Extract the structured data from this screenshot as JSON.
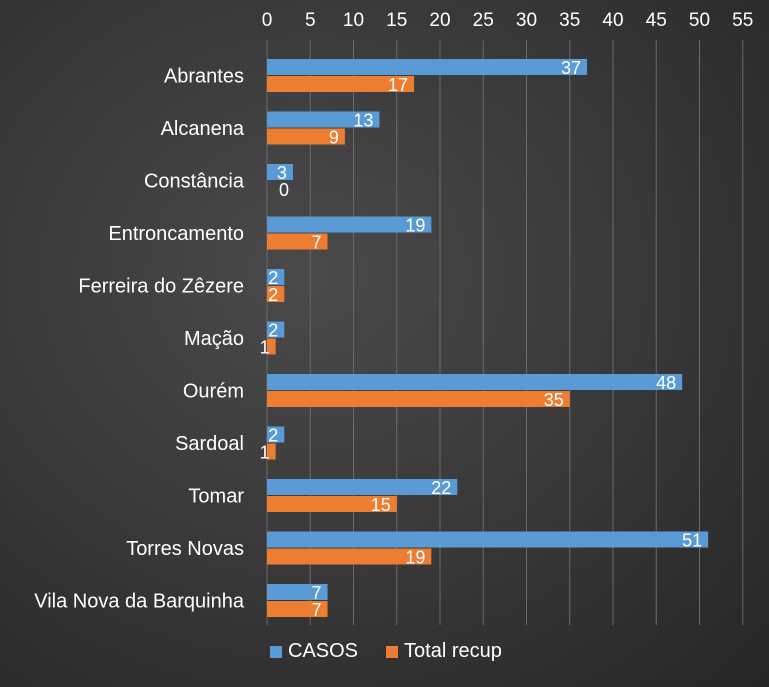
{
  "chart_data": {
    "type": "bar",
    "orientation": "horizontal",
    "categories": [
      "Abrantes",
      "Alcanena",
      "Constância",
      "Entroncamento",
      "Ferreira do Zêzere",
      "Mação",
      "Ourém",
      "Sardoal",
      "Tomar",
      "Torres Novas",
      "Vila Nova da Barquinha"
    ],
    "series": [
      {
        "name": "CASOS",
        "color": "#5b9bd5",
        "values": [
          37,
          13,
          3,
          19,
          2,
          2,
          48,
          2,
          22,
          51,
          7
        ]
      },
      {
        "name": "Total recup",
        "color": "#ed7d31",
        "values": [
          17,
          9,
          0,
          7,
          2,
          1,
          35,
          1,
          15,
          19,
          7
        ]
      }
    ],
    "xlim": [
      0,
      55
    ],
    "xticks": [
      "0",
      "5",
      "10",
      "15",
      "20",
      "25",
      "30",
      "35",
      "40",
      "45",
      "50",
      "55"
    ],
    "axis_position": "top",
    "grid": true,
    "legend_position": "bottom",
    "data_labels": true
  }
}
